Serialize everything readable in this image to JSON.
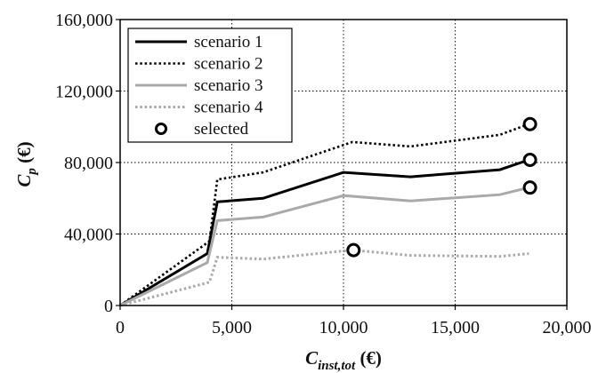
{
  "chart_data": {
    "type": "line",
    "xlim": [
      0,
      20000
    ],
    "ylim": [
      0,
      160000
    ],
    "x_ticks": [
      {
        "value": 0,
        "label": "0"
      },
      {
        "value": 5000,
        "label": "5,000"
      },
      {
        "value": 10000,
        "label": "10,000"
      },
      {
        "value": 15000,
        "label": "15,000"
      },
      {
        "value": 20000,
        "label": "20,000"
      }
    ],
    "y_ticks": [
      {
        "value": 0,
        "label": "0"
      },
      {
        "value": 40000,
        "label": "40,000"
      },
      {
        "value": 80000,
        "label": "80,000"
      },
      {
        "value": 120000,
        "label": "120,000"
      },
      {
        "value": 160000,
        "label": "160,000"
      }
    ],
    "xlabel": {
      "main": "C",
      "sub": "inst,tot",
      "unit": " (€)"
    },
    "ylabel": {
      "main": "C",
      "sub": "p",
      "unit": " (€)"
    },
    "grid": {
      "vertical": true,
      "horizontal": true,
      "style": "dotted"
    },
    "legend_position": "top-left",
    "series": [
      {
        "name": "scenario 1",
        "style": "solid",
        "color": "#000000",
        "x": [
          0,
          3900,
          4350,
          6400,
          10000,
          13000,
          17000,
          18300
        ],
        "y": [
          0,
          29000,
          58000,
          60000,
          74500,
          72000,
          76000,
          81500
        ]
      },
      {
        "name": "scenario 2",
        "style": "dotted",
        "color": "#000000",
        "x": [
          0,
          4000,
          4350,
          6400,
          10400,
          13000,
          17000,
          18300
        ],
        "y": [
          0,
          36000,
          70500,
          74500,
          91500,
          89000,
          95500,
          101500
        ]
      },
      {
        "name": "scenario 3",
        "style": "solid",
        "color": "#a9a9a9",
        "x": [
          0,
          3900,
          4350,
          6400,
          10000,
          13000,
          17000,
          18300
        ],
        "y": [
          0,
          24000,
          47500,
          49500,
          61500,
          58500,
          62000,
          66000
        ]
      },
      {
        "name": "scenario 4",
        "style": "dotted",
        "color": "#a9a9a9",
        "x": [
          0,
          4000,
          4350,
          6400,
          10400,
          13000,
          17000,
          18300
        ],
        "y": [
          0,
          13000,
          27000,
          26000,
          31000,
          28000,
          27500,
          29000
        ]
      }
    ],
    "selected": {
      "name": "selected",
      "x": [
        18350,
        18350,
        18350,
        10450
      ],
      "y": [
        101500,
        81500,
        66000,
        31000
      ]
    }
  }
}
